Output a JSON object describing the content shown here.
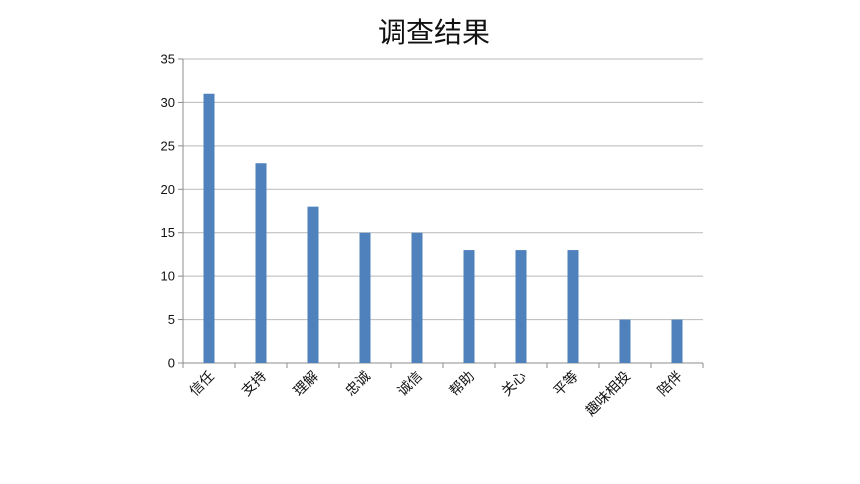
{
  "chart_data": {
    "type": "bar",
    "title": "调查结果",
    "xlabel": "",
    "ylabel": "",
    "categories": [
      "信任",
      "支持",
      "理解",
      "忠诚",
      "诚信",
      "帮助",
      "关心",
      "平等",
      "趣味相投",
      "陪伴"
    ],
    "values": [
      31,
      23,
      18,
      15,
      15,
      13,
      13,
      13,
      5,
      5
    ],
    "ylim": [
      0,
      35
    ],
    "yticks": [
      0,
      5,
      10,
      15,
      20,
      25,
      30,
      35
    ],
    "grid": true,
    "legend": "none",
    "colors": {
      "bar": "#4f81bd"
    }
  }
}
